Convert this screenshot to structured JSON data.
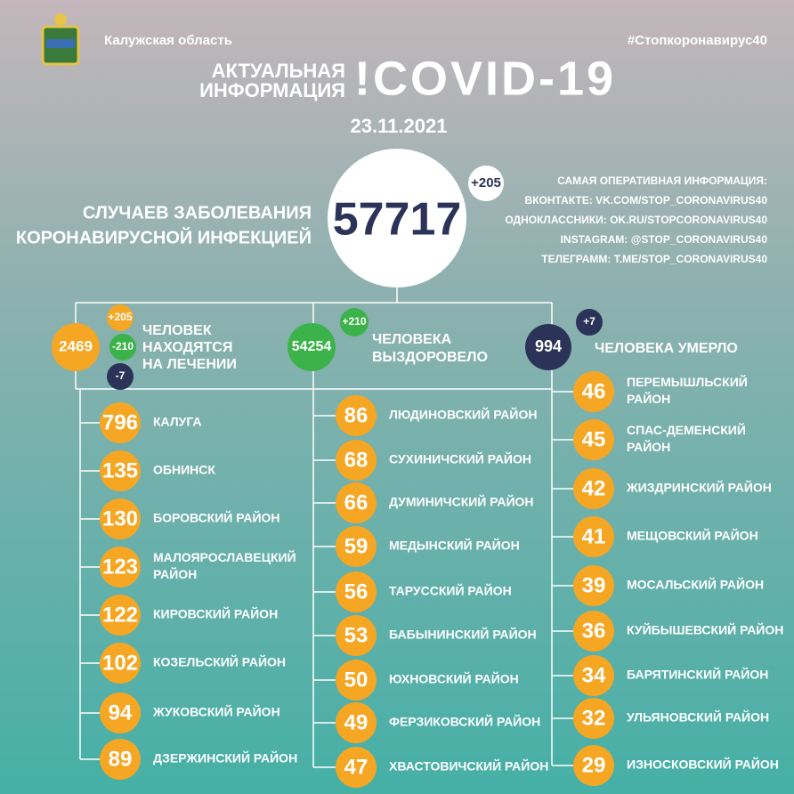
{
  "header": {
    "region": "Калужская область",
    "hashtag": "#Стопкоронавирус40",
    "title_lines": [
      "АКТУАЛЬНАЯ",
      "ИНФОРМАЦИЯ"
    ],
    "title": "!COVID-19",
    "date": "23.11.2021"
  },
  "cases": {
    "label_lines": [
      "СЛУЧАЕВ ЗАБОЛЕВАНИЯ",
      "КОРОНАВИРУСНОЙ ИНФЕКЦИЕЙ"
    ],
    "total": 57717,
    "delta": "+205"
  },
  "info": [
    "САМАЯ ОПЕРАТИВНАЯ ИНФОРМАЦИЯ:",
    "ВКОНТАКТЕ: VK.COM/STOP_CORONAVIRUS40",
    "ОДНОКЛАССНИКИ: OK.RU/STOPCORONAVIRUS40",
    "INSTAGRAM: @STOP_CORONAVIRUS40",
    "ТЕЛЕГРАММ: T.ME/STOP_CORONAVIRUS40"
  ],
  "stats": {
    "treatment": {
      "value": 2469,
      "deltas": [
        "+205",
        "-210",
        "-7"
      ],
      "label_lines": [
        "ЧЕЛОВЕК",
        "НАХОДЯТСЯ",
        "НА ЛЕЧЕНИИ"
      ]
    },
    "recovered": {
      "value": 54254,
      "delta": "+210",
      "label_lines": [
        "ЧЕЛОВЕКА",
        "ВЫЗДОРОВЕЛО"
      ]
    },
    "died": {
      "value": 994,
      "delta": "+7",
      "label_lines": [
        "ЧЕЛОВЕКА УМЕРЛО"
      ]
    }
  },
  "districts": [
    [
      {
        "count": 796,
        "name": [
          "КАЛУГА"
        ]
      },
      {
        "count": 135,
        "name": [
          "ОБНИНСК"
        ]
      },
      {
        "count": 130,
        "name": [
          "БОРОВСКИЙ РАЙОН"
        ]
      },
      {
        "count": 123,
        "name": [
          "МАЛОЯРОСЛАВЕЦКИЙ",
          "РАЙОН"
        ]
      },
      {
        "count": 122,
        "name": [
          "КИРОВСКИЙ РАЙОН"
        ]
      },
      {
        "count": 102,
        "name": [
          "КОЗЕЛЬСКИЙ РАЙОН"
        ]
      },
      {
        "count": 94,
        "name": [
          "ЖУКОВСКИЙ РАЙОН"
        ]
      },
      {
        "count": 89,
        "name": [
          "ДЗЕРЖИНСКИЙ РАЙОН"
        ]
      }
    ],
    [
      {
        "count": 86,
        "name": [
          "ЛЮДИНОВСКИЙ РАЙОН"
        ]
      },
      {
        "count": 68,
        "name": [
          "СУХИНИЧСКИЙ РАЙОН"
        ]
      },
      {
        "count": 66,
        "name": [
          "ДУМИНИЧСКИЙ РАЙОН"
        ]
      },
      {
        "count": 59,
        "name": [
          "МЕДЫНСКИЙ РАЙОН"
        ]
      },
      {
        "count": 56,
        "name": [
          "ТАРУССКИЙ РАЙОН"
        ]
      },
      {
        "count": 53,
        "name": [
          "БАБЫНИНСКИЙ РАЙОН"
        ]
      },
      {
        "count": 50,
        "name": [
          "ЮХНОВСКИЙ РАЙОН"
        ]
      },
      {
        "count": 49,
        "name": [
          "ФЕРЗИКОВСКИЙ РАЙОН"
        ]
      },
      {
        "count": 47,
        "name": [
          "ХВАСТОВИЧСКИЙ РАЙОН"
        ]
      }
    ],
    [
      {
        "count": 46,
        "name": [
          "ПЕРЕМЫШЛЬСКИЙ",
          "РАЙОН"
        ]
      },
      {
        "count": 45,
        "name": [
          "СПАС-ДЕМЕНСКИЙ",
          "РАЙОН"
        ]
      },
      {
        "count": 42,
        "name": [
          "ЖИЗДРИНСКИЙ РАЙОН"
        ]
      },
      {
        "count": 41,
        "name": [
          "МЕЩОВСКИЙ РАЙОН"
        ]
      },
      {
        "count": 39,
        "name": [
          "МОСАЛЬСКИЙ РАЙОН"
        ]
      },
      {
        "count": 36,
        "name": [
          "КУЙБЫШЕВСКИЙ РАЙОН"
        ]
      },
      {
        "count": 34,
        "name": [
          "БАРЯТИНСКИЙ РАЙОН"
        ]
      },
      {
        "count": 32,
        "name": [
          "УЛЬЯНОВСКИЙ РАЙОН"
        ]
      },
      {
        "count": 29,
        "name": [
          "ИЗНОСКОВСКИЙ РАЙОН"
        ]
      }
    ]
  ]
}
